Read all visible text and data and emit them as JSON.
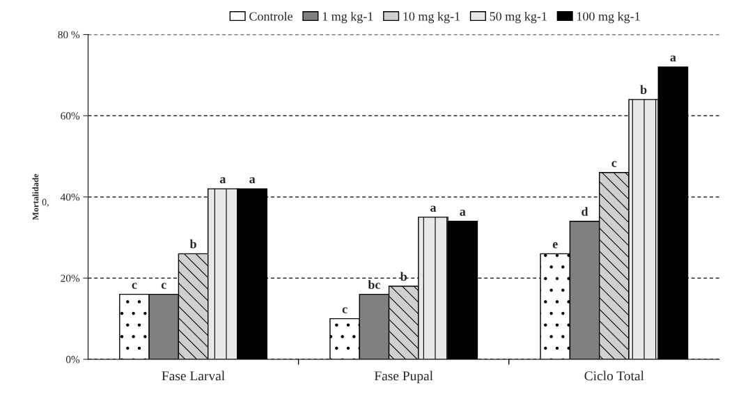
{
  "chart_data": {
    "type": "bar",
    "ylabel": "Mortalidade",
    "categories": [
      "Fase Larval",
      "Fase Pupal",
      "Ciclo Total"
    ],
    "series": [
      {
        "name": "Controle",
        "color": "#ffffff",
        "values": [
          16,
          10,
          26
        ],
        "value_labels": [
          "c",
          "c",
          "e"
        ]
      },
      {
        "name": "1 mg kg-1",
        "color": "#808080",
        "values": [
          16,
          16,
          34
        ],
        "value_labels": [
          "c",
          "bc",
          "d"
        ]
      },
      {
        "name": "10 mg kg-1",
        "color": "#d0d0d0",
        "values": [
          26,
          18,
          46
        ],
        "value_labels": [
          "b",
          "b",
          "c"
        ]
      },
      {
        "name": "50 mg kg-1",
        "color": "#e8e8e8",
        "values": [
          42,
          35,
          64
        ],
        "value_labels": [
          "a",
          "a",
          "b"
        ]
      },
      {
        "name": "100 mg kg-1",
        "color": "#000000",
        "values": [
          42,
          34,
          72
        ],
        "value_labels": [
          "a",
          "a",
          "a"
        ]
      }
    ],
    "ylim": [
      0,
      80
    ],
    "yticks": [
      {
        "value": 0,
        "label": "0%"
      },
      {
        "value": 20,
        "label": "20%"
      },
      {
        "value": 40,
        "label": "40%"
      },
      {
        "value": 60,
        "label": "60%"
      },
      {
        "value": 80,
        "label": "80 %"
      }
    ],
    "grid": "y",
    "legend": "top",
    "annotations": [
      "0,"
    ]
  }
}
